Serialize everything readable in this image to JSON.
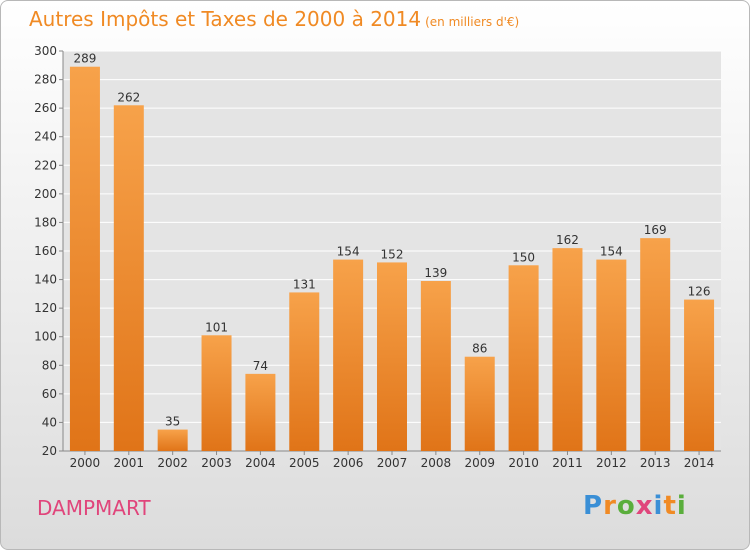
{
  "title": "Autres Impôts et Taxes de 2000 à 2014",
  "subtitle": "(en milliers d'€)",
  "city": "DAMPMART",
  "logo": {
    "letters": [
      "P",
      "r",
      "o",
      "x",
      "i",
      "t",
      "i"
    ],
    "colors": [
      "#3a8fd6",
      "#f08a24",
      "#5aae3c",
      "#e0457b",
      "#3a8fd6",
      "#f08a24",
      "#5aae3c"
    ]
  },
  "colors": {
    "bar_top": "#f7a24a",
    "bar_bottom": "#e07418",
    "title": "#f08a24",
    "city": "#e0457b"
  },
  "chart_data": {
    "type": "bar",
    "categories": [
      "2000",
      "2001",
      "2002",
      "2003",
      "2004",
      "2005",
      "2006",
      "2007",
      "2008",
      "2009",
      "2010",
      "2011",
      "2012",
      "2013",
      "2014"
    ],
    "values": [
      289,
      262,
      35,
      101,
      74,
      131,
      154,
      152,
      139,
      86,
      150,
      162,
      154,
      169,
      126
    ],
    "ylim": [
      20,
      300
    ],
    "yticks": [
      20,
      40,
      60,
      80,
      100,
      120,
      140,
      160,
      180,
      200,
      220,
      240,
      260,
      280,
      300
    ],
    "grid": true
  }
}
